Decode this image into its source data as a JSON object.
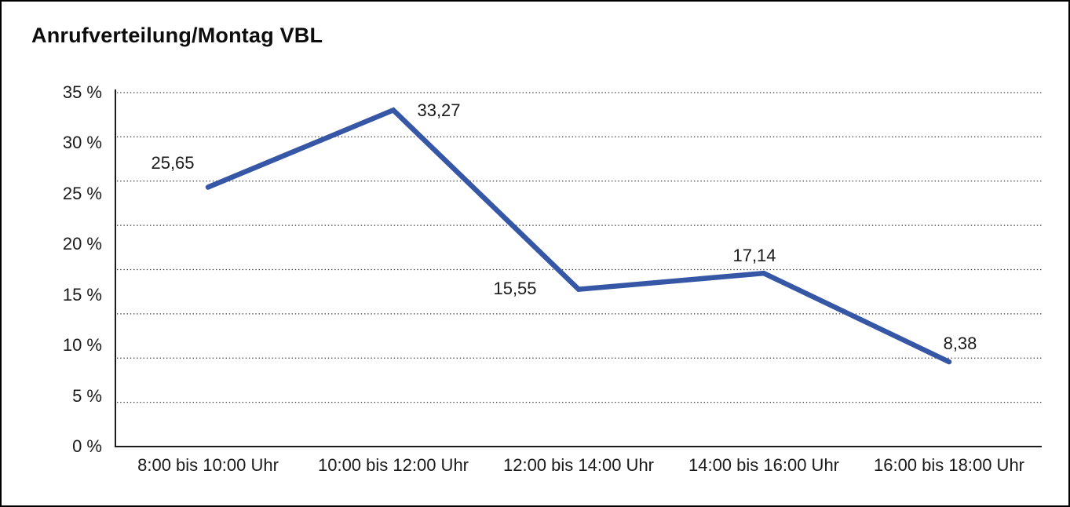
{
  "chart_data": {
    "type": "line",
    "title": "Anrufverteilung/Montag VBL",
    "categories": [
      "8:00 bis 10:00 Uhr",
      "10:00 bis 12:00 Uhr",
      "12:00 bis 14:00 Uhr",
      "14:00 bis 16:00 Uhr",
      "16:00 bis 18:00 Uhr"
    ],
    "values": [
      25.65,
      33.27,
      15.55,
      17.14,
      8.38
    ],
    "data_labels": [
      "25,65",
      "33,27",
      "15,55",
      "17,14",
      "8,38"
    ],
    "xlabel": "",
    "ylabel": "",
    "ylim": [
      0,
      35
    ],
    "y_tick_step": 5,
    "y_tick_labels": [
      "0 %",
      "5 %",
      "10 %",
      "15 %",
      "20 %",
      "25 %",
      "30 %",
      "35 %"
    ],
    "grid": "horizontal fine-dotted, 8 even divisions of plot height",
    "legend": "none",
    "colors": {
      "line": "#3656a6",
      "axis": "#1c1c1c",
      "gridline": "#3d3d3d",
      "text": "#1a1a1a",
      "background": "#ffffff",
      "frame_border": "#000000"
    }
  }
}
